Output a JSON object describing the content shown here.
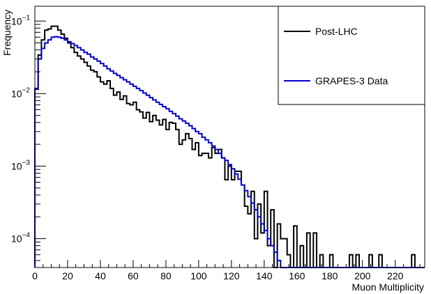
{
  "chart_data": {
    "type": "line",
    "step": true,
    "title": "",
    "xlabel": "Muon Multiplicity",
    "ylabel": "Frequency",
    "xlim": [
      0,
      238
    ],
    "ylim": [
      4e-05,
      0.16
    ],
    "ylog": true,
    "grid": false,
    "legend_position": "top-right",
    "bin_width": 2,
    "x_ticks": [
      0,
      20,
      40,
      60,
      80,
      100,
      120,
      140,
      160,
      180,
      200,
      220
    ],
    "x_tick_labels": [
      "0",
      "20",
      "40",
      "60",
      "80",
      "100",
      "120",
      "140",
      "160",
      "180",
      "200",
      "220"
    ],
    "y_ticks": [
      0.0001,
      0.001,
      0.01,
      0.1
    ],
    "y_tick_bases": [
      "10",
      "10",
      "10",
      "10"
    ],
    "y_tick_exps": [
      "−4",
      "−3",
      "−2",
      "−1"
    ],
    "series": [
      {
        "name": "Post-LHC",
        "color": "#000000",
        "bins": [
          [
            0,
            0.0115
          ],
          [
            2,
            0.034
          ],
          [
            4,
            0.055
          ],
          [
            6,
            0.075
          ],
          [
            8,
            0.078
          ],
          [
            10,
            0.085
          ],
          [
            12,
            0.085
          ],
          [
            14,
            0.075
          ],
          [
            16,
            0.066
          ],
          [
            18,
            0.058
          ],
          [
            20,
            0.05
          ],
          [
            22,
            0.043
          ],
          [
            24,
            0.037
          ],
          [
            26,
            0.033
          ],
          [
            28,
            0.03
          ],
          [
            30,
            0.027
          ],
          [
            32,
            0.024
          ],
          [
            34,
            0.021
          ],
          [
            36,
            0.02
          ],
          [
            38,
            0.017
          ],
          [
            40,
            0.0145
          ],
          [
            42,
            0.0135
          ],
          [
            44,
            0.015
          ],
          [
            46,
            0.0118
          ],
          [
            48,
            0.0095
          ],
          [
            50,
            0.0105
          ],
          [
            52,
            0.0083
          ],
          [
            54,
            0.0093
          ],
          [
            56,
            0.0073
          ],
          [
            58,
            0.007
          ],
          [
            60,
            0.0076
          ],
          [
            62,
            0.006
          ],
          [
            64,
            0.0056
          ],
          [
            66,
            0.0046
          ],
          [
            68,
            0.0055
          ],
          [
            70,
            0.0041
          ],
          [
            72,
            0.005
          ],
          [
            74,
            0.0043
          ],
          [
            76,
            0.0037
          ],
          [
            78,
            0.0044
          ],
          [
            80,
            0.0032
          ],
          [
            82,
            0.004
          ],
          [
            84,
            0.0039
          ],
          [
            86,
            0.0032
          ],
          [
            88,
            0.002
          ],
          [
            90,
            0.0023
          ],
          [
            92,
            0.0028
          ],
          [
            94,
            0.0024
          ],
          [
            96,
            0.0017
          ],
          [
            98,
            0.0021
          ],
          [
            100,
            0.0014
          ],
          [
            102,
            0.0015
          ],
          [
            104,
            0.0015
          ],
          [
            106,
            0.0013
          ],
          [
            108,
            0.0018
          ],
          [
            110,
            0.0015
          ],
          [
            112,
            0.0017
          ],
          [
            114,
            0.0013
          ],
          [
            116,
            0.00065
          ],
          [
            118,
            0.001
          ],
          [
            120,
            0.00065
          ],
          [
            122,
            0.00085
          ],
          [
            124,
            0.00085
          ],
          [
            126,
            0.00055
          ],
          [
            128,
            0.00028
          ],
          [
            130,
            0.00022
          ],
          [
            132,
            0.00045
          ],
          [
            134,
            0.0001
          ],
          [
            136,
            0.0003
          ],
          [
            138,
            0.00012
          ],
          [
            140,
            0.00045
          ],
          [
            142,
            8e-05
          ],
          [
            144,
            0.00025
          ],
          [
            146,
            4e-05
          ],
          [
            148,
            0.00016
          ],
          [
            150,
            0.0001
          ],
          [
            152,
            0.0001
          ],
          [
            154,
            6e-05
          ],
          [
            156,
            4e-05
          ],
          [
            158,
            0.00015
          ],
          [
            160,
            4e-05
          ],
          [
            162,
            8e-05
          ],
          [
            164,
            4e-05
          ],
          [
            166,
            0.00012
          ],
          [
            168,
            4e-05
          ],
          [
            170,
            0.00012
          ],
          [
            172,
            4e-05
          ],
          [
            174,
            6e-05
          ],
          [
            176,
            4e-05
          ],
          [
            178,
            4e-05
          ],
          [
            180,
            6e-05
          ],
          [
            182,
            4e-05
          ],
          [
            184,
            4e-05
          ],
          [
            186,
            4e-05
          ],
          [
            188,
            4e-05
          ],
          [
            190,
            4e-05
          ],
          [
            192,
            6e-05
          ],
          [
            194,
            4e-05
          ],
          [
            196,
            6e-05
          ],
          [
            198,
            4e-05
          ],
          [
            200,
            4e-05
          ],
          [
            202,
            4e-05
          ],
          [
            204,
            6e-05
          ],
          [
            206,
            4e-05
          ],
          [
            208,
            4e-05
          ],
          [
            210,
            6e-05
          ],
          [
            212,
            4e-05
          ],
          [
            214,
            4e-05
          ],
          [
            216,
            4e-05
          ],
          [
            218,
            4e-05
          ],
          [
            220,
            4e-05
          ],
          [
            222,
            4e-05
          ],
          [
            224,
            4e-05
          ],
          [
            226,
            4e-05
          ],
          [
            228,
            4e-05
          ],
          [
            230,
            6e-05
          ],
          [
            232,
            4e-05
          ],
          [
            234,
            4e-05
          ],
          [
            236,
            4e-05
          ]
        ]
      },
      {
        "name": "GRAPES-3 Data",
        "color": "#0000cc",
        "bins": [
          [
            0,
            0.0118
          ],
          [
            2,
            0.03
          ],
          [
            4,
            0.042
          ],
          [
            6,
            0.05
          ],
          [
            8,
            0.055
          ],
          [
            10,
            0.06
          ],
          [
            12,
            0.061
          ],
          [
            14,
            0.06
          ],
          [
            16,
            0.058
          ],
          [
            18,
            0.055
          ],
          [
            20,
            0.052
          ],
          [
            22,
            0.049
          ],
          [
            24,
            0.046
          ],
          [
            26,
            0.043
          ],
          [
            28,
            0.04
          ],
          [
            30,
            0.037
          ],
          [
            32,
            0.035
          ],
          [
            34,
            0.032
          ],
          [
            36,
            0.03
          ],
          [
            38,
            0.028
          ],
          [
            40,
            0.026
          ],
          [
            42,
            0.024
          ],
          [
            44,
            0.022
          ],
          [
            46,
            0.0205
          ],
          [
            48,
            0.019
          ],
          [
            50,
            0.0178
          ],
          [
            52,
            0.0166
          ],
          [
            54,
            0.0155
          ],
          [
            56,
            0.0145
          ],
          [
            58,
            0.0135
          ],
          [
            60,
            0.0126
          ],
          [
            62,
            0.0118
          ],
          [
            64,
            0.011
          ],
          [
            66,
            0.0102
          ],
          [
            68,
            0.0095
          ],
          [
            70,
            0.0088
          ],
          [
            72,
            0.0082
          ],
          [
            74,
            0.0076
          ],
          [
            76,
            0.0071
          ],
          [
            78,
            0.0066
          ],
          [
            80,
            0.0062
          ],
          [
            82,
            0.0057
          ],
          [
            84,
            0.0053
          ],
          [
            86,
            0.0049
          ],
          [
            88,
            0.0045
          ],
          [
            90,
            0.0042
          ],
          [
            92,
            0.0039
          ],
          [
            94,
            0.0036
          ],
          [
            96,
            0.0033
          ],
          [
            98,
            0.003
          ],
          [
            100,
            0.0028
          ],
          [
            102,
            0.0025
          ],
          [
            104,
            0.0023
          ],
          [
            106,
            0.0021
          ],
          [
            108,
            0.0019
          ],
          [
            110,
            0.0017
          ],
          [
            112,
            0.0015
          ],
          [
            114,
            0.0013
          ],
          [
            116,
            0.0012
          ],
          [
            118,
            0.00105
          ],
          [
            120,
            0.00092
          ],
          [
            122,
            0.00078
          ],
          [
            124,
            0.00066
          ],
          [
            126,
            0.00055
          ],
          [
            128,
            0.00046
          ],
          [
            130,
            0.00038
          ],
          [
            132,
            0.00031
          ],
          [
            134,
            0.00025
          ],
          [
            136,
            0.0002
          ],
          [
            138,
            0.00016
          ],
          [
            140,
            0.00013
          ],
          [
            142,
            0.0001
          ],
          [
            144,
            8e-05
          ],
          [
            146,
            6.5e-05
          ],
          [
            148,
            5e-05
          ],
          [
            150,
            4e-05
          ],
          [
            152,
            4e-05
          ],
          [
            154,
            4e-05
          ],
          [
            156,
            4e-05
          ],
          [
            158,
            4e-05
          ],
          [
            160,
            4e-05
          ],
          [
            162,
            4e-05
          ],
          [
            164,
            4e-05
          ],
          [
            166,
            4e-05
          ],
          [
            168,
            4e-05
          ],
          [
            170,
            4e-05
          ],
          [
            172,
            4e-05
          ],
          [
            174,
            4e-05
          ],
          [
            176,
            4e-05
          ],
          [
            178,
            4e-05
          ],
          [
            180,
            4e-05
          ],
          [
            182,
            4e-05
          ],
          [
            184,
            4e-05
          ],
          [
            186,
            4e-05
          ],
          [
            188,
            4e-05
          ],
          [
            190,
            4e-05
          ],
          [
            192,
            4e-05
          ],
          [
            194,
            4e-05
          ],
          [
            196,
            4e-05
          ],
          [
            198,
            4e-05
          ],
          [
            200,
            4e-05
          ],
          [
            202,
            4e-05
          ],
          [
            204,
            4e-05
          ],
          [
            206,
            4e-05
          ],
          [
            208,
            4e-05
          ],
          [
            210,
            4e-05
          ],
          [
            212,
            4e-05
          ],
          [
            214,
            4e-05
          ],
          [
            216,
            4e-05
          ],
          [
            218,
            4e-05
          ],
          [
            220,
            4e-05
          ],
          [
            222,
            4e-05
          ],
          [
            224,
            4e-05
          ],
          [
            226,
            4e-05
          ],
          [
            228,
            4e-05
          ],
          [
            230,
            4e-05
          ],
          [
            232,
            4e-05
          ],
          [
            234,
            4e-05
          ],
          [
            236,
            4e-05
          ]
        ]
      }
    ]
  }
}
